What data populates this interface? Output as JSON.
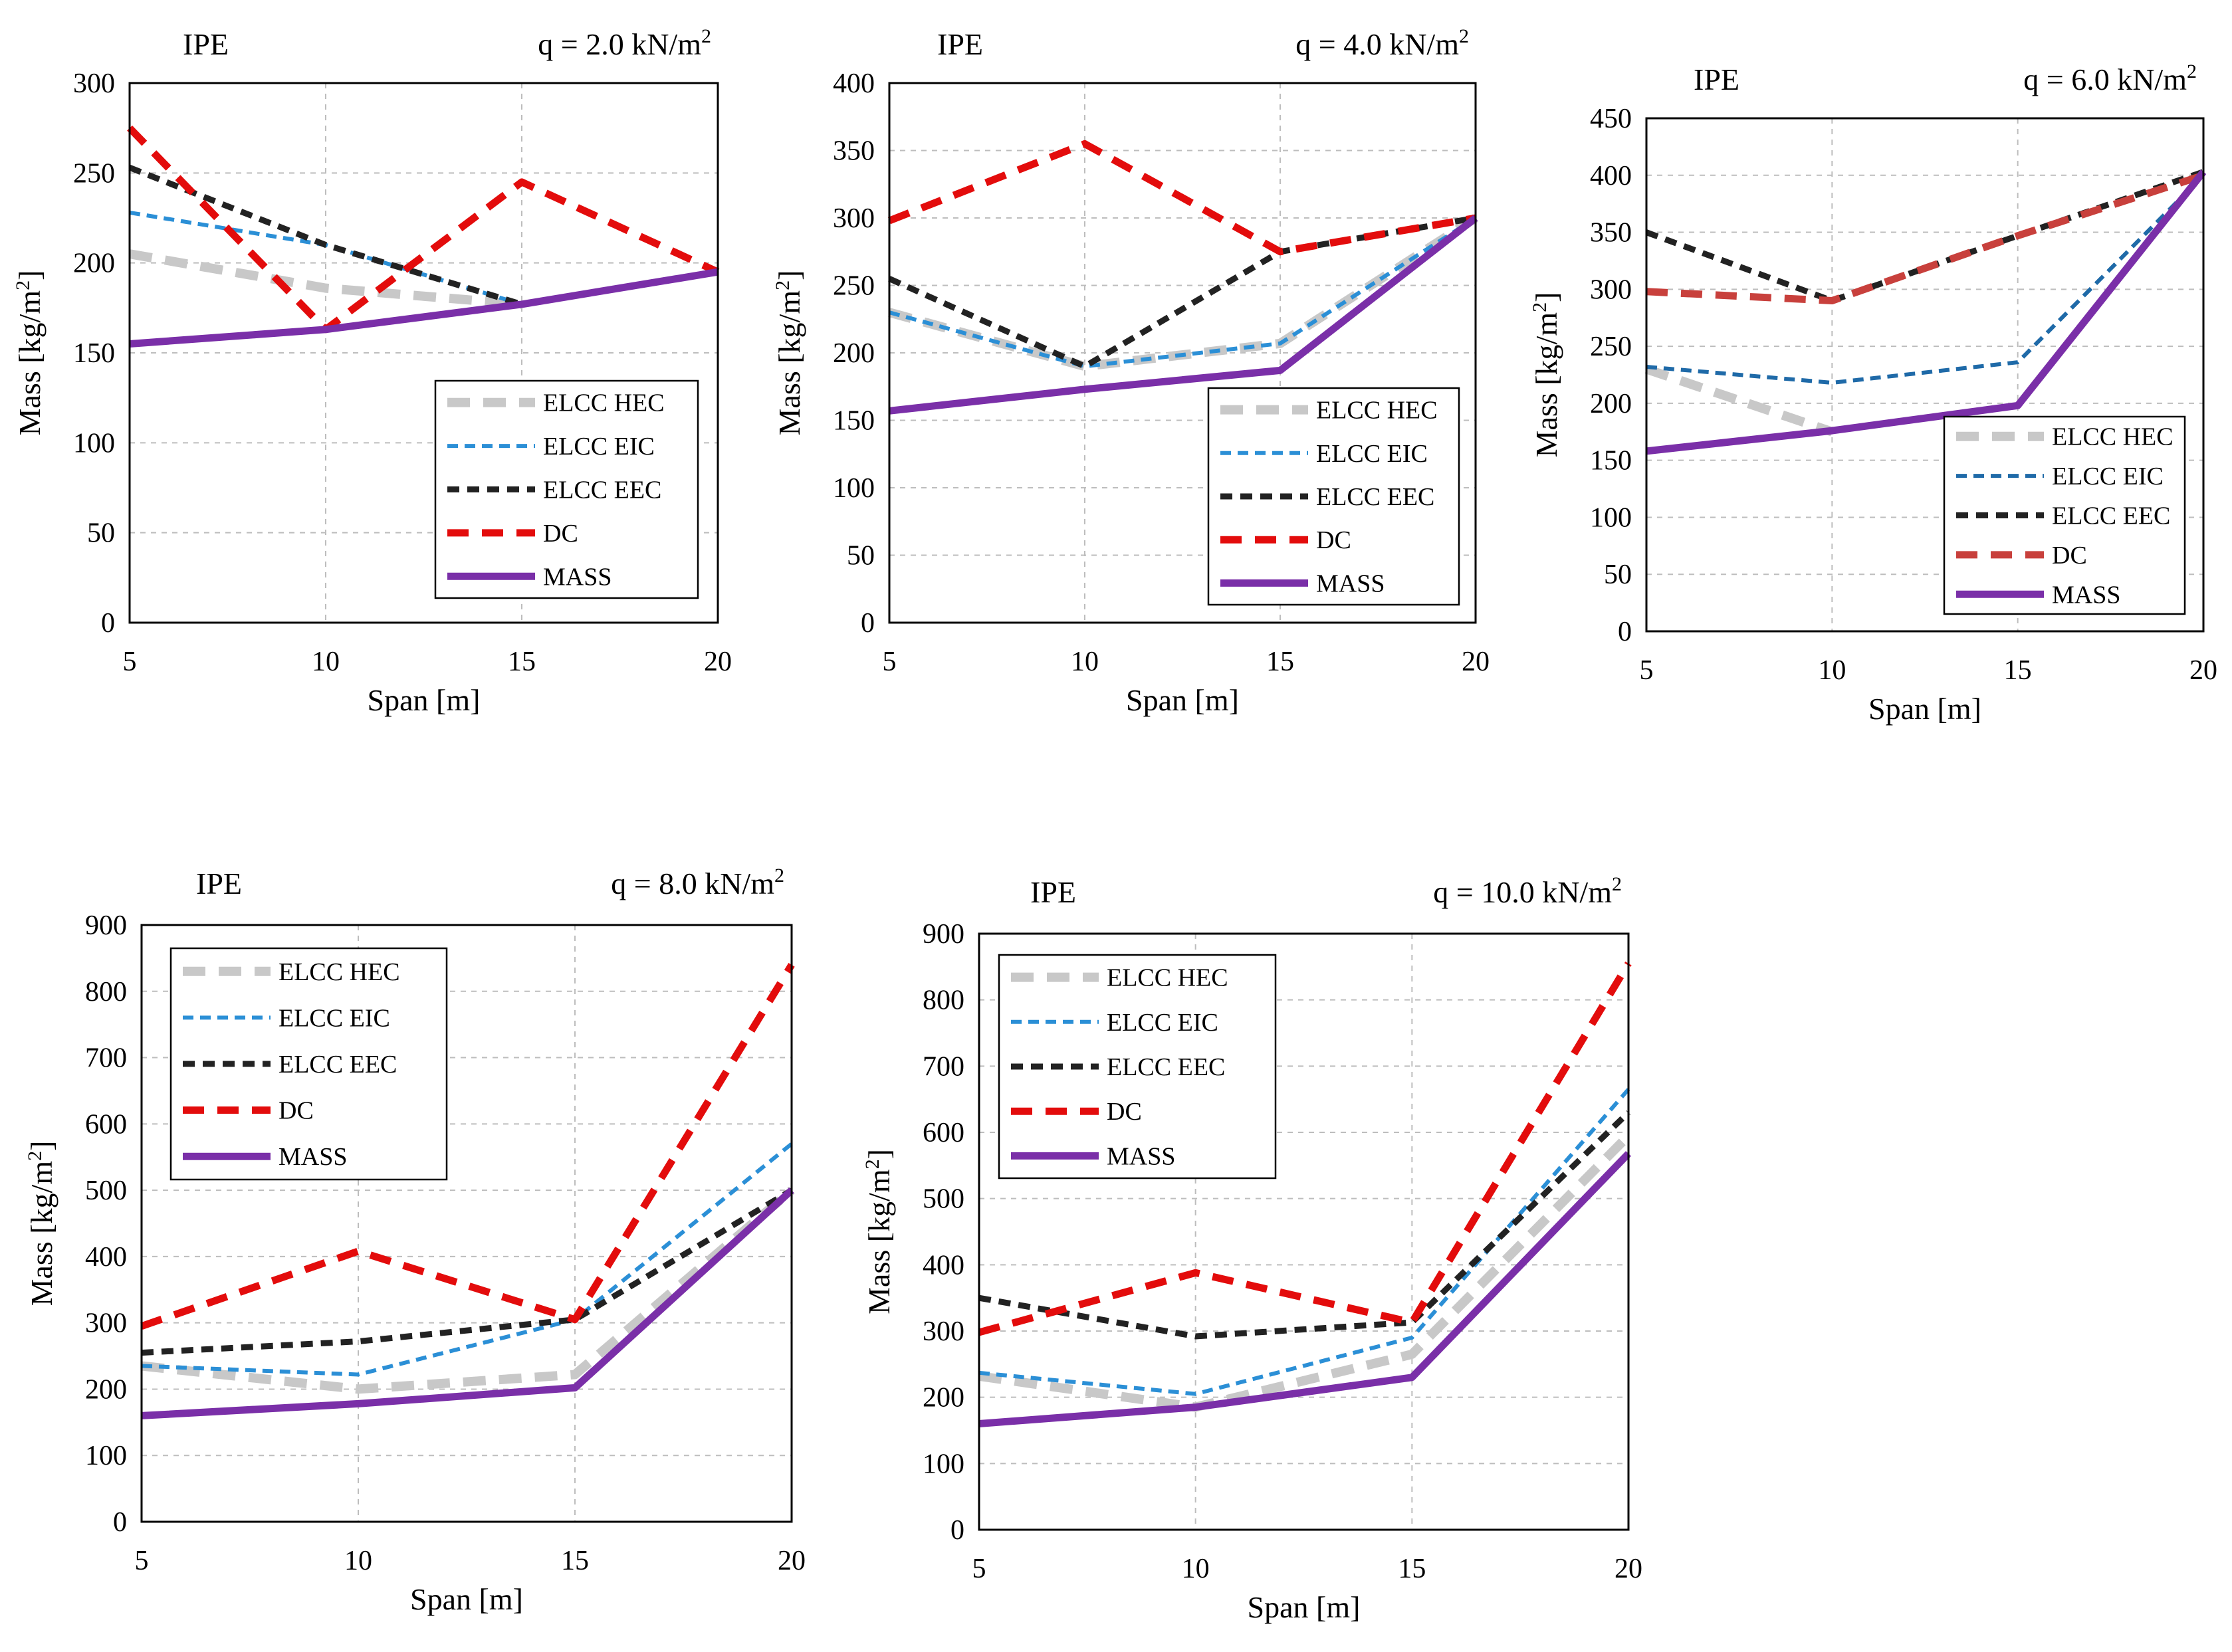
{
  "chart_data": [
    {
      "type": "line",
      "title_left": "IPE",
      "title_right": "q = 2.0 kN/m",
      "title_right_sup": "2",
      "xlabel": "Span [m]",
      "ylabel": "Mass [kg/m",
      "ylabel_sup": "2",
      "ylabel_close": "]",
      "x": [
        5,
        10,
        15,
        20
      ],
      "xlim": [
        5,
        20
      ],
      "ylim": [
        0,
        300
      ],
      "ystep": 50,
      "legend_position": "bottom-right",
      "series": [
        {
          "name": "ELCC HEC",
          "values": [
            205,
            186,
            177,
            null
          ]
        },
        {
          "name": "ELCC EIC",
          "values": [
            228,
            210,
            177,
            null
          ]
        },
        {
          "name": "ELCC EEC",
          "values": [
            253,
            210,
            177,
            null
          ]
        },
        {
          "name": "DC",
          "values": [
            275,
            163,
            245,
            195
          ]
        },
        {
          "name": "MASS",
          "values": [
            155,
            163,
            177,
            195
          ]
        }
      ]
    },
    {
      "type": "line",
      "title_left": "IPE",
      "title_right": "q = 4.0 kN/m",
      "title_right_sup": "2",
      "xlabel": "Span [m]",
      "ylabel": "Mass [kg/m",
      "ylabel_sup": "2",
      "ylabel_close": "]",
      "x": [
        5,
        10,
        15,
        20
      ],
      "xlim": [
        5,
        20
      ],
      "ylim": [
        0,
        400
      ],
      "ystep": 50,
      "legend_position": "bottom-right",
      "series": [
        {
          "name": "ELCC HEC",
          "values": [
            230,
            190,
            207,
            300
          ]
        },
        {
          "name": "ELCC EIC",
          "values": [
            230,
            190,
            207,
            300
          ]
        },
        {
          "name": "ELCC EEC",
          "values": [
            255,
            190,
            275,
            300
          ]
        },
        {
          "name": "DC",
          "values": [
            298,
            355,
            275,
            300
          ]
        },
        {
          "name": "MASS",
          "values": [
            157,
            173,
            187,
            300
          ]
        }
      ]
    },
    {
      "type": "line",
      "title_left": "IPE",
      "title_right": "q = 6.0 kN/m",
      "title_right_sup": "2",
      "xlabel": "Span [m]",
      "ylabel": "Mass [kg/m",
      "ylabel_sup": "2",
      "ylabel_close": "]",
      "x": [
        5,
        10,
        15,
        20
      ],
      "xlim": [
        5,
        20
      ],
      "ylim": [
        0,
        450
      ],
      "ystep": 50,
      "legend_position": "bottom-right",
      "series": [
        {
          "name": "ELCC HEC",
          "values": [
            230,
            175,
            null,
            null
          ]
        },
        {
          "name": "ELCC EIC",
          "values": [
            232,
            218,
            236,
            400
          ]
        },
        {
          "name": "ELCC EEC",
          "values": [
            350,
            290,
            347,
            403
          ]
        },
        {
          "name": "DC",
          "values": [
            298,
            290,
            347,
            400
          ]
        },
        {
          "name": "MASS",
          "values": [
            158,
            176,
            198,
            403
          ]
        }
      ]
    },
    {
      "type": "line",
      "title_left": "IPE",
      "title_right": "q = 8.0 kN/m",
      "title_right_sup": "2",
      "xlabel": "Span [m]",
      "ylabel": "Mass [kg/m",
      "ylabel_sup": "2",
      "ylabel_close": "]",
      "x": [
        5,
        10,
        15,
        20
      ],
      "xlim": [
        5,
        20
      ],
      "ylim": [
        0,
        900
      ],
      "ystep": 100,
      "legend_position": "top-left",
      "series": [
        {
          "name": "ELCC HEC",
          "values": [
            235,
            200,
            222,
            500
          ]
        },
        {
          "name": "ELCC EIC",
          "values": [
            235,
            222,
            305,
            570
          ]
        },
        {
          "name": "ELCC EEC",
          "values": [
            255,
            272,
            305,
            500
          ]
        },
        {
          "name": "DC",
          "values": [
            295,
            408,
            305,
            840
          ]
        },
        {
          "name": "MASS",
          "values": [
            160,
            178,
            202,
            500
          ]
        }
      ]
    },
    {
      "type": "line",
      "title_left": "IPE",
      "title_right": "q = 10.0 kN/m",
      "title_right_sup": "2",
      "xlabel": "Span [m]",
      "ylabel": "Mass [kg/m",
      "ylabel_sup": "2",
      "ylabel_close": "]",
      "x": [
        5,
        10,
        15,
        20
      ],
      "xlim": [
        5,
        20
      ],
      "ylim": [
        0,
        900
      ],
      "ystep": 100,
      "legend_position": "top-left",
      "series": [
        {
          "name": "ELCC HEC",
          "values": [
            232,
            185,
            265,
            595
          ]
        },
        {
          "name": "ELCC EIC",
          "values": [
            237,
            205,
            290,
            665
          ]
        },
        {
          "name": "ELCC EEC",
          "values": [
            350,
            292,
            313,
            630
          ]
        },
        {
          "name": "DC",
          "values": [
            298,
            388,
            313,
            855
          ]
        },
        {
          "name": "MASS",
          "values": [
            160,
            185,
            230,
            568
          ]
        }
      ]
    }
  ],
  "style": {
    "series_colors": {
      "ELCC HEC": "#c8c8c8",
      "ELCC EIC": "#2b8fd6",
      "ELCC EEC": "#222222",
      "DC": "#e30c0c",
      "MASS": "#7a2fa8"
    },
    "chart3_overrides": {
      "ELCC EIC": "#1f6aa8",
      "DC": "#c8403c"
    }
  }
}
